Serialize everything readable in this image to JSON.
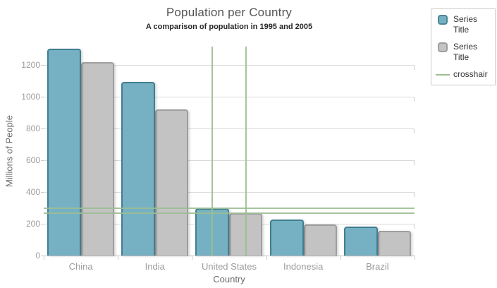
{
  "chart": {
    "title": "Population per Country",
    "subtitle": "A comparison of population in 1995 and 2005",
    "x_axis_title": "Country",
    "y_axis_title": "Millions of People"
  },
  "chart_data": {
    "type": "bar",
    "title": "Population per Country",
    "subtitle": "A comparison of population in 1995 and 2005",
    "xlabel": "Country",
    "ylabel": "Millions of People",
    "categories": [
      "China",
      "India",
      "United States",
      "Indonesia",
      "Brazil"
    ],
    "series": [
      {
        "name": "Series Title",
        "color": "#76b1c3",
        "border_color": "#417e92",
        "values": [
          1303,
          1093,
          296,
          227,
          184
        ]
      },
      {
        "name": "Series Title",
        "color": "#c3c3c3",
        "border_color": "#9e9e9e",
        "values": [
          1220,
          920,
          266,
          197,
          158
        ]
      }
    ],
    "y_ticks": [
      0,
      200,
      400,
      600,
      800,
      1000,
      1200
    ],
    "ylim": [
      0,
      1316
    ],
    "grid": "horizontal",
    "legend_position": "top-right",
    "crosshair": {
      "color": "#9cbe92",
      "category": "United States",
      "horizontal_values": [
        296,
        266
      ]
    }
  },
  "legend": {
    "items": [
      {
        "label": "Series Title",
        "marker": "square",
        "color": "#76b1c3",
        "border_color": "#4e8698"
      },
      {
        "label": "Series Title",
        "marker": "square",
        "color": "#c3c3c3",
        "border_color": "#9e9e9e"
      },
      {
        "label": "crosshair",
        "marker": "line",
        "color": "#9cbe92"
      }
    ]
  },
  "colors": {
    "series1": "#76b1c3",
    "series2": "#c3c3c3",
    "crosshair": "#9cbe92",
    "gridline": "#dadada",
    "axis_line": "#c9c9c9",
    "tick_label": "#9b9b9b",
    "axis_title": "#6b6b6b",
    "title": "#545454",
    "subtitle": "#262626"
  }
}
